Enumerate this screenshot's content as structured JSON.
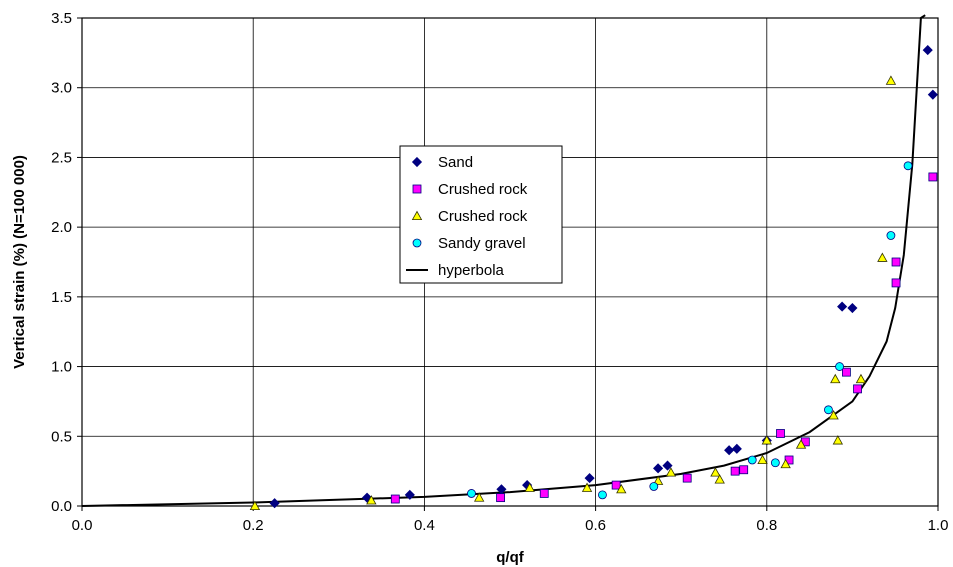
{
  "chart_data": {
    "type": "scatter",
    "xlabel": "q/qf",
    "ylabel": "Vertical strain (%) (N=100 000)",
    "xlim": [
      0,
      1.0
    ],
    "ylim": [
      0,
      3.5
    ],
    "xticks": [
      0.0,
      0.2,
      0.4,
      0.6,
      0.8,
      1.0
    ],
    "xtick_labels": [
      "0.0",
      "0.2",
      "0.4",
      "0.6",
      "0.8",
      "1.0"
    ],
    "yticks": [
      0.0,
      0.5,
      1.0,
      1.5,
      2.0,
      2.5,
      3.0,
      3.5
    ],
    "ytick_labels": [
      "0.0",
      "0.5",
      "1.0",
      "1.5",
      "2.0",
      "2.5",
      "3.0",
      "3.5"
    ],
    "grid": true,
    "legend_position": "center",
    "series": [
      {
        "name": "Sand",
        "marker": "diamond",
        "color": "#000080",
        "stroke": "#000080",
        "x": [
          0.225,
          0.333,
          0.383,
          0.49,
          0.52,
          0.593,
          0.673,
          0.684,
          0.756,
          0.765,
          0.8,
          0.888,
          0.9,
          0.988,
          0.994
        ],
        "y": [
          0.02,
          0.06,
          0.08,
          0.12,
          0.15,
          0.2,
          0.27,
          0.29,
          0.4,
          0.41,
          0.47,
          1.43,
          1.42,
          3.27,
          2.95
        ]
      },
      {
        "name": "Crushed rock",
        "marker": "square",
        "color": "#ff00ff",
        "stroke": "#000080",
        "x": [
          0.366,
          0.489,
          0.54,
          0.624,
          0.707,
          0.763,
          0.773,
          0.816,
          0.826,
          0.845,
          0.893,
          0.906,
          0.951,
          0.951,
          0.994
        ],
        "y": [
          0.05,
          0.06,
          0.09,
          0.15,
          0.2,
          0.25,
          0.26,
          0.52,
          0.33,
          0.46,
          0.96,
          0.84,
          1.75,
          1.6,
          2.36
        ]
      },
      {
        "name": "Crushed rock",
        "marker": "triangle",
        "color": "#ffff00",
        "stroke": "#333300",
        "x": [
          0.202,
          0.338,
          0.464,
          0.523,
          0.59,
          0.63,
          0.673,
          0.688,
          0.74,
          0.745,
          0.795,
          0.8,
          0.822,
          0.84,
          0.878,
          0.883,
          0.91,
          0.935,
          0.945,
          0.88
        ],
        "y": [
          0.0,
          0.04,
          0.06,
          0.13,
          0.13,
          0.12,
          0.18,
          0.24,
          0.24,
          0.19,
          0.33,
          0.47,
          0.3,
          0.44,
          0.65,
          0.47,
          0.91,
          1.78,
          3.05,
          0.91
        ]
      },
      {
        "name": "Sandy gravel",
        "marker": "circle",
        "color": "#00ffff",
        "stroke": "#000080",
        "x": [
          0.455,
          0.608,
          0.668,
          0.783,
          0.81,
          0.872,
          0.885,
          0.945,
          0.965
        ],
        "y": [
          0.09,
          0.08,
          0.14,
          0.33,
          0.31,
          0.69,
          1.0,
          1.94,
          2.44
        ]
      },
      {
        "name": "hyperbola",
        "marker": "line",
        "color": "#000000",
        "x": [
          0.0,
          0.2,
          0.4,
          0.5,
          0.6,
          0.7,
          0.75,
          0.8,
          0.85,
          0.9,
          0.92,
          0.94,
          0.95,
          0.96,
          0.97,
          0.98,
          0.985
        ],
        "y": [
          0.0,
          0.025,
          0.065,
          0.1,
          0.15,
          0.23,
          0.29,
          0.38,
          0.53,
          0.75,
          0.93,
          1.18,
          1.42,
          1.8,
          2.45,
          3.5,
          3.52
        ]
      }
    ]
  }
}
